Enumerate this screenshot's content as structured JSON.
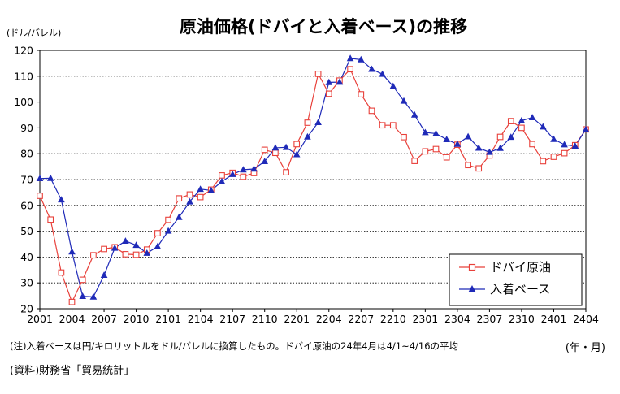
{
  "chart_data": {
    "type": "line",
    "title": "原油価格(ドバイと入着ベース)の推移",
    "ylabel": "(ドル/バレル)",
    "xlabel": "(年・月)",
    "ylim": [
      20,
      120
    ],
    "yticks": [
      20,
      30,
      40,
      50,
      60,
      70,
      80,
      90,
      100,
      110,
      120
    ],
    "x_tick_labels": [
      "2001",
      "2004",
      "2007",
      "2010",
      "2101",
      "2104",
      "2107",
      "2110",
      "2201",
      "2204",
      "2207",
      "2210",
      "2301",
      "2304",
      "2307",
      "2310",
      "2401",
      "2404"
    ],
    "months_total": 52,
    "grid": "horizontal dotted",
    "legend_position": "bottom-right",
    "series": [
      {
        "name": "ドバイ原油",
        "color": "#e8403a",
        "marker": "open-square",
        "values": [
          63.7,
          54.5,
          34,
          22.6,
          31.2,
          40.7,
          43.1,
          43.8,
          41.1,
          40.9,
          42.9,
          49.2,
          54.4,
          62.7,
          64.2,
          63.2,
          66.1,
          71.6,
          72.6,
          71.1,
          72.5,
          81.5,
          80.3,
          72.8,
          83.7,
          92,
          110.9,
          103.2,
          108.3,
          112.7,
          103,
          96.6,
          91,
          91,
          86.4,
          77.2,
          80.9,
          81.8,
          78.6,
          83.5,
          75.6,
          74.3,
          79.3,
          86.5,
          92.6,
          90,
          83.7,
          77.1,
          78.8,
          80.2,
          83.3,
          89.4
        ]
      },
      {
        "name": "入着ベース",
        "color": "#1f2ab8",
        "marker": "filled-triangle",
        "values": [
          70.4,
          70.5,
          62.2,
          42,
          24.8,
          24.6,
          33,
          43.5,
          46.2,
          44.6,
          41.5,
          44.1,
          50.1,
          55.4,
          61.4,
          66.3,
          65.8,
          69.2,
          72,
          73.8,
          74.1,
          77,
          82.3,
          82.5,
          79.7,
          86.5,
          92.1,
          107.6,
          107.7,
          116.9,
          116.4,
          112.7,
          110.8,
          106.1,
          100.4,
          95,
          88.2,
          87.8,
          85.5,
          83.7,
          86.6,
          82.2,
          80.6,
          82.1,
          86.4,
          92.8,
          94,
          90.4,
          85.6,
          83.5,
          83,
          89.4
        ]
      }
    ]
  },
  "notes": {
    "note1": "(注)入着ベースは円/キロリットルをドル/バレルに換算したもの。ドバイ原油の24年4月は4/1~4/16の平均",
    "source": "(資料)財務省「貿易統計」"
  }
}
